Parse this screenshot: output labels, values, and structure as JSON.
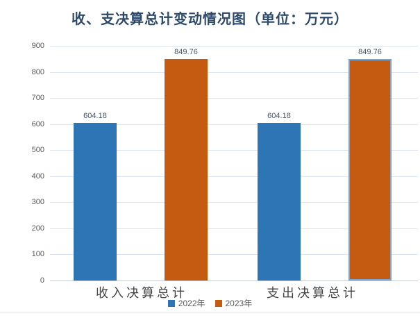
{
  "chart_data": {
    "type": "bar",
    "title": "收、支决算总计变动情况图（单位：万元）",
    "categories": [
      "收入决算总计",
      "支出决算总计"
    ],
    "series": [
      {
        "name": "2022年",
        "color": "#2E75B6",
        "values": [
          604.18,
          604.18
        ]
      },
      {
        "name": "2023年",
        "color": "#C55A11",
        "values": [
          849.76,
          849.76
        ]
      }
    ],
    "data_labels": [
      [
        "604.18",
        "604.18"
      ],
      [
        "849.76",
        "849.76"
      ]
    ],
    "ylim": [
      0,
      900
    ],
    "ytick_step": 100,
    "yticks": [
      900,
      800,
      700,
      600,
      500,
      400,
      300,
      200,
      100,
      0
    ],
    "grid": true,
    "legend_position": "bottom",
    "selected": {
      "series": "2023年",
      "category": "支出决算总计"
    }
  },
  "colors": {
    "title": "#2E4A6B",
    "series_blue": "#2E75B6",
    "series_orange": "#C55A11",
    "selection_outline": "#72A5D8",
    "gridline": "#DCE4EF",
    "axis_line": "#C6CBD3",
    "tick_label": "#595959",
    "data_label": "#44546A",
    "category_label": "#444444",
    "legend_text": "#595959"
  }
}
